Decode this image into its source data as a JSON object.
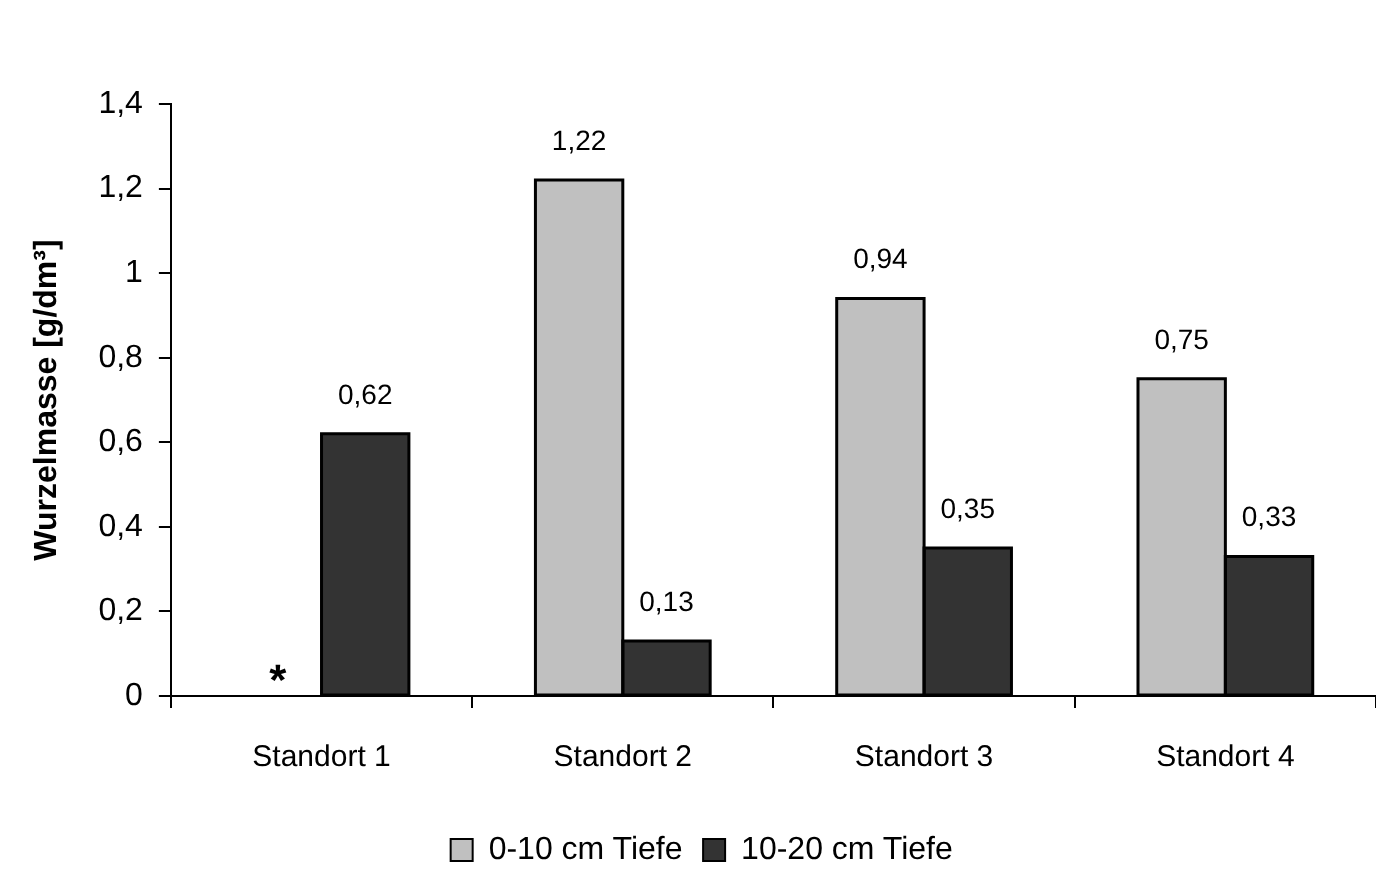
{
  "chart_data": {
    "type": "bar",
    "categories": [
      "Standort 1",
      "Standort 2",
      "Standort 3",
      "Standort 4"
    ],
    "series": [
      {
        "name": "0-10 cm Tiefe",
        "color": "#c0c0c0",
        "values": [
          null,
          1.22,
          0.94,
          0.75
        ],
        "value_labels": [
          null,
          "1,22",
          "0,94",
          "0,75"
        ]
      },
      {
        "name": "10-20 cm Tiefe",
        "color": "#333333",
        "values": [
          0.62,
          0.13,
          0.35,
          0.33
        ],
        "value_labels": [
          "0,62",
          "0,13",
          "0,35",
          "0,33"
        ]
      }
    ],
    "ylabel": "Wurzelmasse [g/dm³]",
    "ylim": [
      0,
      1.4
    ],
    "yticks": [
      0,
      {
        "value": 0.2,
        "label": "0,2"
      },
      {
        "value": 0.4,
        "label": "0,4"
      },
      {
        "value": 0.6,
        "label": "0,6"
      },
      {
        "value": 0.8,
        "label": "0,8"
      },
      1,
      {
        "value": 1.2,
        "label": "1,2"
      },
      {
        "value": 1.4,
        "label": "1,4"
      }
    ],
    "annotations": [
      {
        "text": "*",
        "x": "Standort 1",
        "y": 0.05
      }
    ],
    "legend": "bottom",
    "grid": false
  }
}
